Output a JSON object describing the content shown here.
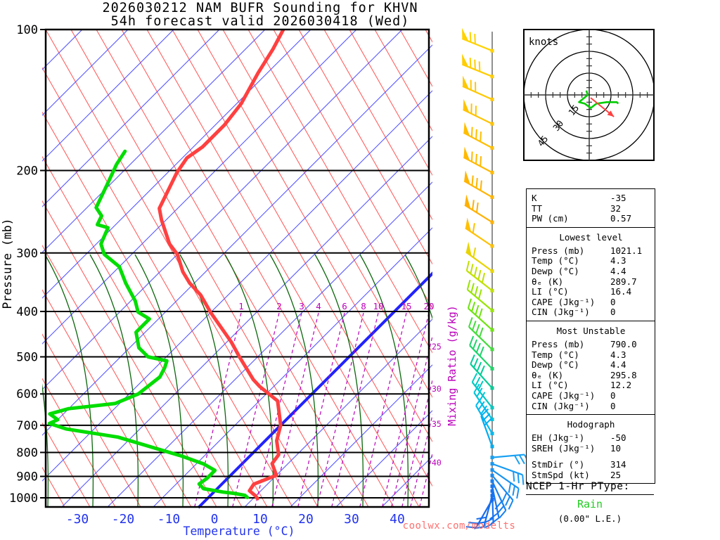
{
  "title": {
    "line1": "2026030212 NAM BUFR Sounding for KHVN",
    "line2": "54h forecast valid 2026030418 (Wed)"
  },
  "watermark": "coolwx.com/modelts",
  "colors": {
    "temperature_trace": "#ff4040",
    "dewpoint_trace": "#00dd00",
    "isotherm": "#5555ff",
    "isotherm_zero": "#2222ff",
    "dry_adiabat": "#ff6060",
    "moist_adiabat": "#0a660a",
    "mixing_ratio": "#bb00bb",
    "axis_blue": "#2233ee",
    "rain_green": "#22cc22",
    "watermark_red": "#ff7070",
    "barb_staff_line": "#909090",
    "storm_arrow": "#ff4040",
    "hodo_trace": "#00cc00"
  },
  "chart_data": {
    "type": "line",
    "subtype": "skewt-logp-sounding",
    "title": "2026030212 NAM BUFR Sounding for KHVN — 54h forecast valid 2026030418 (Wed)",
    "xlabel": "Temperature (°C)",
    "ylabel": "Pressure (mb)",
    "ylabel_right": "Mixing Ratio (g/kg)",
    "x_ticks": [
      -30,
      -20,
      -10,
      0,
      10,
      20,
      30,
      40
    ],
    "y_ticks": [
      100,
      200,
      300,
      400,
      500,
      600,
      700,
      800,
      900,
      1000
    ],
    "y_scale": "log",
    "xlim": [
      -40,
      45
    ],
    "ylim": [
      100,
      1050
    ],
    "mixing_ratio_inline_labels": [
      1,
      2,
      3,
      4,
      6,
      8,
      10,
      15,
      20
    ],
    "mixing_ratio_right_labels": [
      25,
      30,
      35,
      40
    ],
    "series": [
      {
        "name": "temperature",
        "units": [
          "mb",
          "C"
        ],
        "points": [
          [
            100,
            -86
          ],
          [
            110,
            -84
          ],
          [
            124,
            -82
          ],
          [
            144,
            -79
          ],
          [
            160,
            -78
          ],
          [
            178,
            -78
          ],
          [
            188,
            -79
          ],
          [
            202,
            -78
          ],
          [
            241,
            -74
          ],
          [
            255,
            -71
          ],
          [
            287,
            -64
          ],
          [
            302,
            -60
          ],
          [
            329,
            -55
          ],
          [
            348,
            -51
          ],
          [
            369,
            -46
          ],
          [
            402,
            -40
          ],
          [
            465,
            -29
          ],
          [
            500,
            -24
          ],
          [
            559,
            -16
          ],
          [
            579,
            -13
          ],
          [
            621,
            -6
          ],
          [
            700,
            0
          ],
          [
            755,
            2.5
          ],
          [
            809,
            6
          ],
          [
            845,
            6.5
          ],
          [
            895,
            10
          ],
          [
            935,
            7
          ],
          [
            966,
            7.5
          ],
          [
            991,
            10
          ],
          [
            1004,
            11
          ]
        ]
      },
      {
        "name": "dewpoint",
        "units": [
          "mb",
          "C"
        ],
        "points": [
          [
            182,
            -94
          ],
          [
            194,
            -93
          ],
          [
            211,
            -91
          ],
          [
            240,
            -88
          ],
          [
            250,
            -85
          ],
          [
            261,
            -84
          ],
          [
            265,
            -81
          ],
          [
            287,
            -79
          ],
          [
            302,
            -76
          ],
          [
            321,
            -70
          ],
          [
            348,
            -65
          ],
          [
            380,
            -59
          ],
          [
            401,
            -56
          ],
          [
            415,
            -52
          ],
          [
            443,
            -52
          ],
          [
            478,
            -48
          ],
          [
            500,
            -44
          ],
          [
            510,
            -39
          ],
          [
            527,
            -38
          ],
          [
            552,
            -37
          ],
          [
            600,
            -38
          ],
          [
            629,
            -41
          ],
          [
            645,
            -50
          ],
          [
            662,
            -53
          ],
          [
            681,
            -50
          ],
          [
            694,
            -51
          ],
          [
            713,
            -46
          ],
          [
            742,
            -33
          ],
          [
            814,
            -15
          ],
          [
            846,
            -8.5
          ],
          [
            874,
            -4.5
          ],
          [
            909,
            -4.5
          ],
          [
            934,
            -5
          ],
          [
            956,
            -3
          ],
          [
            972,
            2
          ],
          [
            979,
            5
          ],
          [
            988,
            7.5
          ],
          [
            998,
            8.5
          ]
        ]
      }
    ],
    "wind_barbs": [
      {
        "p": 111,
        "rot": 22,
        "color": "#ffd200",
        "flags": 1,
        "barbs": 2
      },
      {
        "p": 126,
        "rot": 22,
        "color": "#ffcd00",
        "flags": 1,
        "barbs": 3
      },
      {
        "p": 141,
        "rot": 24,
        "color": "#ffc800",
        "flags": 1,
        "barbs": 2
      },
      {
        "p": 159,
        "rot": 26,
        "color": "#ffc300",
        "flags": 1,
        "barbs": 2
      },
      {
        "p": 179,
        "rot": 28,
        "color": "#ffbe00",
        "flags": 1,
        "barbs": 3
      },
      {
        "p": 202,
        "rot": 28,
        "color": "#ffb900",
        "flags": 1,
        "barbs": 3
      },
      {
        "p": 228,
        "rot": 30,
        "color": "#ffb400",
        "flags": 1,
        "barbs": 3
      },
      {
        "p": 258,
        "rot": 32,
        "color": "#ffb000",
        "flags": 1,
        "barbs": 2
      },
      {
        "p": 290,
        "rot": 34,
        "color": "#ffc000",
        "flags": 1,
        "barbs": 1
      },
      {
        "p": 328,
        "rot": 36,
        "color": "#e8d400",
        "flags": 1,
        "barbs": 1
      },
      {
        "p": 361,
        "rot": 38,
        "color": "#c0e000",
        "flags": 0,
        "barbs": 5
      },
      {
        "p": 398,
        "rot": 40,
        "color": "#98e400",
        "flags": 0,
        "barbs": 4
      },
      {
        "p": 438,
        "rot": 42,
        "color": "#6ee40e",
        "flags": 0,
        "barbs": 4
      },
      {
        "p": 482,
        "rot": 44,
        "color": "#44dc3c",
        "flags": 0,
        "barbs": 4
      },
      {
        "p": 530,
        "rot": 46,
        "color": "#1ed46a",
        "flags": 0,
        "barbs": 4
      },
      {
        "p": 583,
        "rot": 48,
        "color": "#00cc96",
        "flags": 0,
        "barbs": 4
      },
      {
        "p": 642,
        "rot": 52,
        "color": "#00c8c0",
        "flags": 0,
        "barbs": 3
      },
      {
        "p": 680,
        "rot": 56,
        "color": "#00c4d8",
        "flags": 0,
        "barbs": 3
      },
      {
        "p": 729,
        "rot": 60,
        "color": "#00baee",
        "flags": 0,
        "barbs": 3
      },
      {
        "p": 777,
        "rot": 70,
        "color": "#00acf2",
        "flags": 0,
        "barbs": 3
      },
      {
        "p": 820,
        "rot": 175,
        "color": "#18a0f2",
        "flags": 0,
        "barbs": 3
      },
      {
        "p": 846,
        "rot": 200,
        "color": "#189af2",
        "flags": 0,
        "barbs": 3
      },
      {
        "p": 872,
        "rot": 215,
        "color": "#1892f0",
        "flags": 0,
        "barbs": 3
      },
      {
        "p": 896,
        "rot": 230,
        "color": "#1888f0",
        "flags": 0,
        "barbs": 3
      },
      {
        "p": 921,
        "rot": 245,
        "color": "#1880f0",
        "flags": 0,
        "barbs": 3
      },
      {
        "p": 945,
        "rot": 258,
        "color": "#1878f0",
        "flags": 0,
        "barbs": 2
      },
      {
        "p": 967,
        "rot": 268,
        "color": "#1874ee",
        "flags": 0,
        "barbs": 2
      },
      {
        "p": 989,
        "rot": 285,
        "color": "#1870ec",
        "flags": 0,
        "barbs": 3
      },
      {
        "p": 1009,
        "rot": 300,
        "color": "#186cea",
        "flags": 0,
        "barbs": 2
      }
    ]
  },
  "hodograph": {
    "unit_label": "knots",
    "ring_labels": [
      15,
      30,
      45
    ],
    "ring_interval_kt": 15,
    "trace_kt": [
      [
        -2,
        -3
      ],
      [
        -1,
        0
      ],
      [
        -7,
        5
      ],
      [
        -3,
        6
      ],
      [
        1,
        9
      ],
      [
        5,
        6
      ],
      [
        12,
        5
      ],
      [
        19,
        5
      ],
      [
        20,
        6
      ]
    ],
    "storm_arrow_kt": {
      "from": [
        1,
        2
      ],
      "to": [
        17,
        15
      ]
    }
  },
  "stats": {
    "sections": [
      {
        "title": "",
        "rows": [
          {
            "label": "K",
            "value": "-35"
          },
          {
            "label": "TT",
            "value": "32"
          },
          {
            "label": "PW (cm)",
            "value": "0.57"
          }
        ]
      },
      {
        "title": "Lowest level",
        "rows": [
          {
            "label": "Press (mb)",
            "value": "1021.1"
          },
          {
            "label": "Temp (°C)",
            "value": "4.3"
          },
          {
            "label": "Dewp (°C)",
            "value": "4.4"
          },
          {
            "label": "θₑ (K)",
            "value": "289.7"
          },
          {
            "label": "LI (°C)",
            "value": "16.4"
          },
          {
            "label": "CAPE (Jkg⁻¹)",
            "value": "0"
          },
          {
            "label": "CIN (Jkg⁻¹)",
            "value": "0"
          }
        ]
      },
      {
        "title": "Most Unstable",
        "rows": [
          {
            "label": "Press (mb)",
            "value": "790.0"
          },
          {
            "label": "Temp (°C)",
            "value": "4.3"
          },
          {
            "label": "Dewp (°C)",
            "value": "4.4"
          },
          {
            "label": "θₑ (K)",
            "value": "295.8"
          },
          {
            "label": "LI (°C)",
            "value": "12.2"
          },
          {
            "label": "CAPE (Jkg⁻¹)",
            "value": "0"
          },
          {
            "label": "CIN (Jkg⁻¹)",
            "value": "0"
          }
        ]
      },
      {
        "title": "Hodograph",
        "rows": [
          {
            "label": "EH (Jkg⁻¹)",
            "value": "-50"
          },
          {
            "label": "SREH (Jkg⁻¹)",
            "value": "10"
          },
          {
            "gap": true
          },
          {
            "label": "StmDir (°)",
            "value": "314"
          },
          {
            "label": "StmSpd (kt)",
            "value": "25"
          }
        ]
      }
    ]
  },
  "ptype": {
    "heading": "NCEP 1-Hr PType:",
    "value": "Rain",
    "amount": "(0.00\" L.E.)"
  }
}
